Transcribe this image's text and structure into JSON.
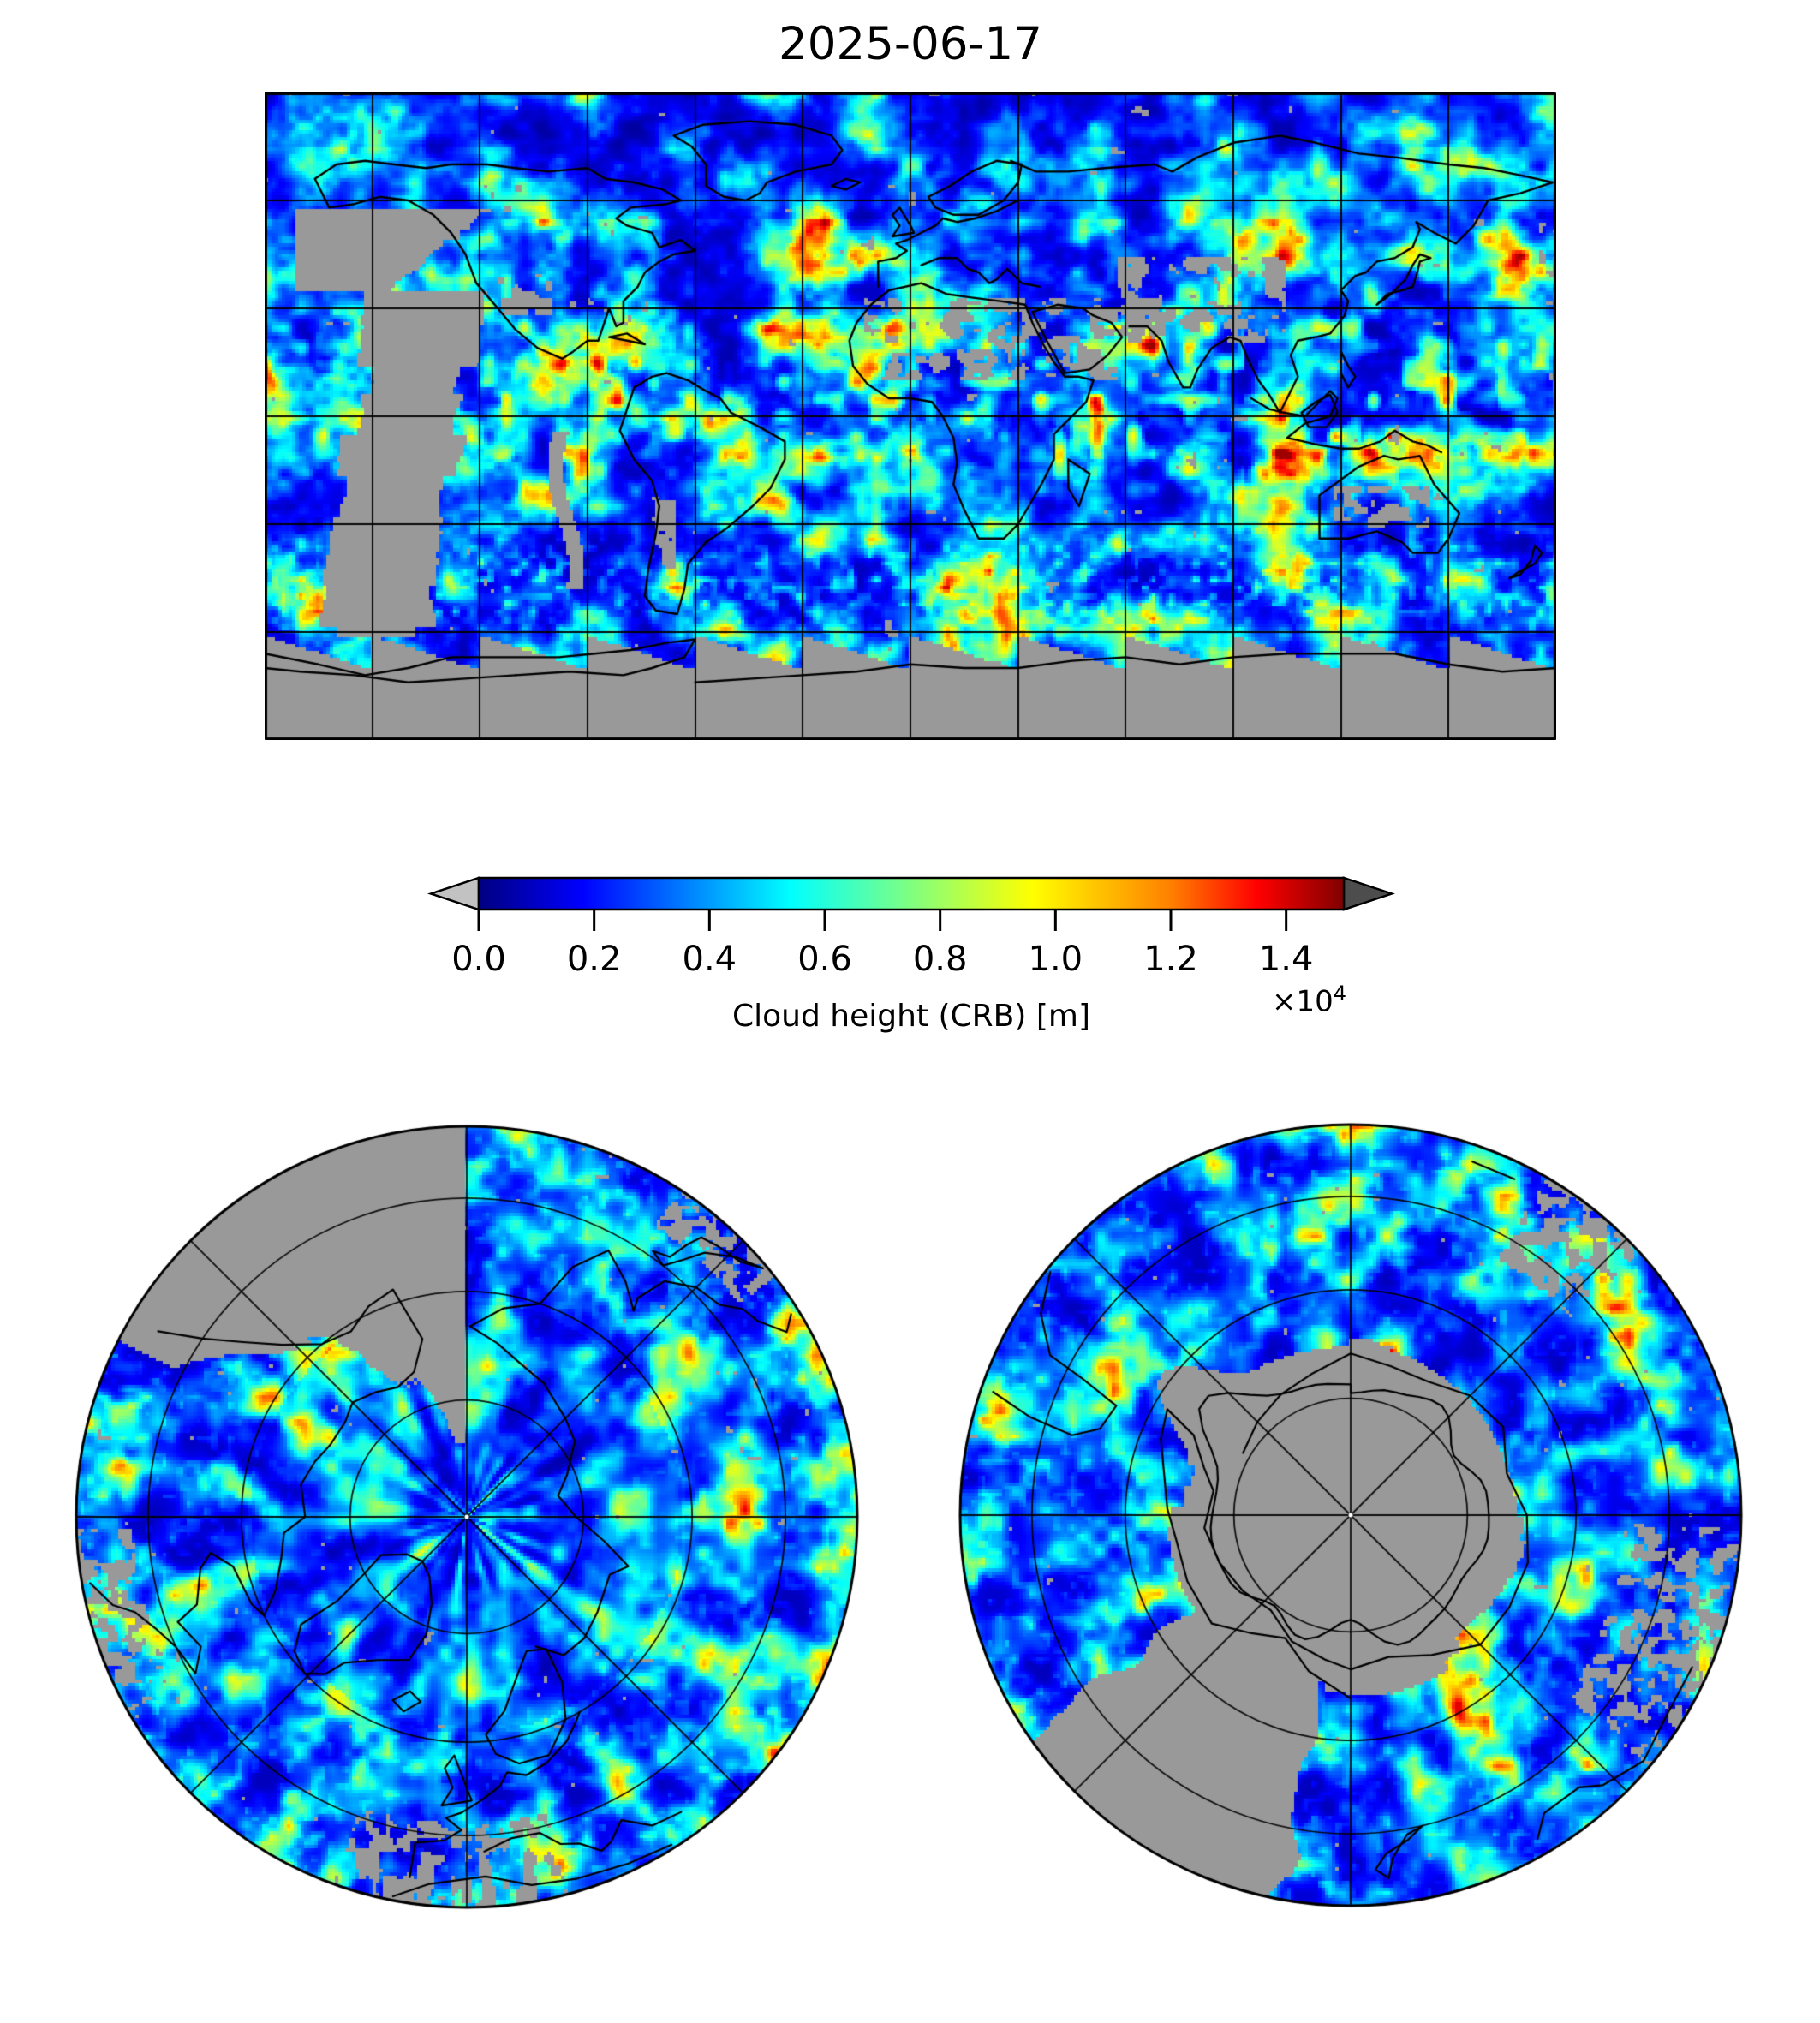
{
  "figure": {
    "title": "2025-06-17",
    "background": "#ffffff"
  },
  "colorbar": {
    "label": "Cloud height (CRB) [m]",
    "ticks": [
      "0.0",
      "0.2",
      "0.4",
      "0.6",
      "0.8",
      "1.0",
      "1.2",
      "1.4"
    ],
    "offset": {
      "mantissa": "×10",
      "exponent": "4"
    },
    "orientation": "horizontal",
    "extend": "both",
    "under_color": "#c2c2c2",
    "over_color": "#4d4d4d",
    "outline_color": "#000000",
    "colormap": "jet",
    "stops": [
      [
        "0",
        "#000080"
      ],
      [
        "0.12",
        "#0000ff"
      ],
      [
        "0.36",
        "#00ffff"
      ],
      [
        "0.5",
        "#80ff80"
      ],
      [
        "0.64",
        "#ffff00"
      ],
      [
        "0.8",
        "#ff8000"
      ],
      [
        "0.9",
        "#ff0000"
      ],
      [
        "1",
        "#800000"
      ]
    ]
  },
  "chart_data": {
    "type": "heatmap",
    "title": "2025-06-17",
    "variable": "Cloud height (CRB) [m]",
    "colormap": "jet",
    "vmin_m": 0,
    "vmax_m": 15000,
    "tick_values_m": [
      0,
      2000,
      4000,
      6000,
      8000,
      10000,
      12000,
      14000
    ],
    "no_data_color": "#999999",
    "coastline_color": "#000000",
    "gridline_color": "#000000",
    "panels": [
      {
        "name": "global-map",
        "projection": "equirectangular",
        "lon_range": [
          -180,
          180
        ],
        "lat_range": [
          -90,
          90
        ],
        "gridline_spacing_deg": 30,
        "notes": "Mostly 1000-4000 m cloud (dark/mid blue); cyan-green-yellow convective bands 5000-9000 m along the ITCZ, South Asian monsoon, Maritime Continent and Southern Ocean storm tracks; isolated orange-red cores 10000-13000 m near the Horn of Africa, India and Central America; gray no-data over Sahara, Arabian Peninsula, an eastern-Pacific orbit-gap swath and Antarctica with sawtooth swath edges"
      },
      {
        "name": "north-polar-map",
        "projection": "orthographic-north",
        "boundary_lat_deg": 30,
        "parallel_circles_lat_deg": [
          75,
          60,
          45
        ],
        "meridian_spacing_deg": 45,
        "notes": "Low blue cloud 1000-3000 m over the Arctic Ocean with brighter cyan streaks 4000-6000 m; gray no-data wedge from the pole toward 135-180W; white pixel at pole"
      },
      {
        "name": "south-polar-map",
        "projection": "orthographic-south",
        "boundary_lat_deg": -30,
        "parallel_circles_lat_deg": [
          -75,
          -60,
          -45
        ],
        "meridian_spacing_deg": 45,
        "notes": "Antarctica gray (no data) with black coastline; surrounding Southern Ocean blue with cyan-yellow frontal bands 4000-7000 m; gray no-data wedge toward the lower left; white pixel at pole"
      }
    ]
  }
}
